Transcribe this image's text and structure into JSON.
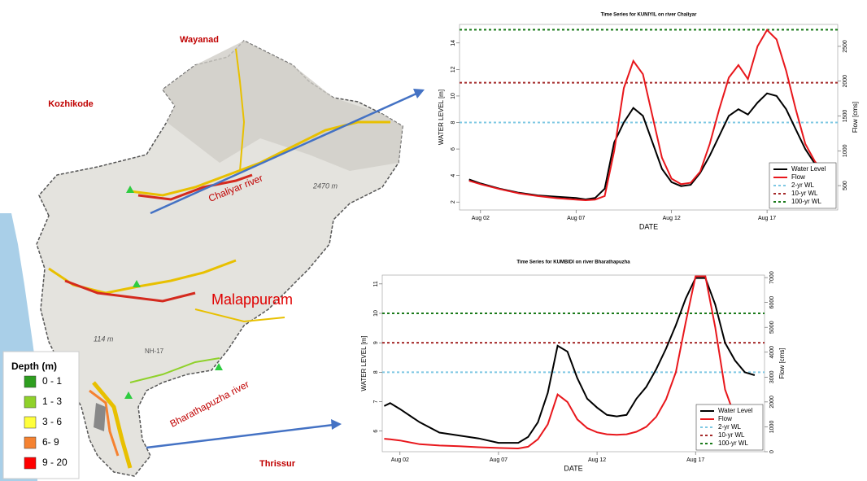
{
  "map": {
    "labels": {
      "wayanad": "Wayanad",
      "kozhikode": "Kozhikode",
      "malappuram": "Malappuram",
      "thrissur": "Thrissur",
      "chaliyar": "Chaliyar river",
      "bharathapuzha": "Bharathapuzha river",
      "peak": "2470 m",
      "elevation": "114 m",
      "highway": "NH-17"
    }
  },
  "legend": {
    "title": "Depth (m)",
    "items": [
      {
        "label": "0 - 1",
        "color": "#2e9e1f"
      },
      {
        "label": "1 - 3",
        "color": "#8fd12a"
      },
      {
        "label": "3 - 6",
        "color": "#ffff3c"
      },
      {
        "label": "6- 9",
        "color": "#f58231"
      },
      {
        "label": "9 - 20",
        "color": "#ff0000"
      }
    ]
  },
  "chart_data": [
    {
      "type": "line",
      "title": "Time Series for KUNIYIL on river Chaliyar",
      "x_label": "DATE",
      "y_label": "WATER LEVEL [m]",
      "y2_label": "Flow [cms]",
      "xlim": [
        0.9,
        20.7
      ],
      "xticks": [
        {
          "value": 2,
          "label": "Aug 02"
        },
        {
          "value": 7,
          "label": "Aug 07"
        },
        {
          "value": 12,
          "label": "Aug 12"
        },
        {
          "value": 17,
          "label": "Aug 17"
        }
      ],
      "ylim": [
        1.4,
        15.4
      ],
      "yticks": [
        2,
        4,
        6,
        8,
        10,
        12,
        14
      ],
      "y2lim": [
        150,
        2815
      ],
      "y2ticks": [
        500,
        1000,
        1500,
        2000,
        2500
      ],
      "legend": "lower right",
      "x": [
        1.4,
        2,
        3,
        4,
        5,
        6,
        7,
        7.5,
        8,
        8.5,
        9,
        9.5,
        10,
        10.5,
        11,
        11.5,
        12,
        12.5,
        13,
        13.5,
        14,
        14.5,
        15,
        15.5,
        16,
        16.5,
        17,
        17.5,
        18,
        18.5,
        19,
        19.5,
        20
      ],
      "series": [
        {
          "name": "Water Level",
          "color": "#000000",
          "axis": "y",
          "values": [
            3.7,
            3.4,
            3.0,
            2.7,
            2.5,
            2.4,
            2.3,
            2.2,
            2.3,
            3,
            6.5,
            8,
            9.1,
            8.5,
            6.5,
            4.5,
            3.5,
            3.2,
            3.3,
            4.2,
            5.5,
            7,
            8.5,
            9,
            8.6,
            9.5,
            10.2,
            10,
            9,
            7.5,
            6,
            4.9,
            4.3
          ]
        },
        {
          "name": "Flow",
          "color": "#e8171c",
          "axis": "y2",
          "values": [
            570,
            520,
            450,
            390,
            350,
            320,
            300,
            290,
            300,
            350,
            1000,
            1900,
            2290,
            2100,
            1500,
            900,
            600,
            520,
            540,
            700,
            1100,
            1600,
            2050,
            2230,
            2030,
            2500,
            2734,
            2600,
            2150,
            1600,
            1100,
            850,
            680
          ]
        }
      ],
      "reference_lines": [
        {
          "name": "2-yr WL",
          "color": "#7ec8e3",
          "value": 8
        },
        {
          "name": "10-yr WL",
          "color": "#a52a2a",
          "value": 11
        },
        {
          "name": "100-yr WL",
          "color": "#1a7a1a",
          "value": 15
        }
      ]
    },
    {
      "type": "line",
      "title": "Time Series for KUMBIDI on river Bharathapuzha",
      "x_label": "DATE",
      "y_label": "WATER LEVEL [m]",
      "y2_label": "Flow [cms]",
      "xlim": [
        1.1,
        20.5
      ],
      "xticks": [
        {
          "value": 2,
          "label": "Aug 02"
        },
        {
          "value": 7,
          "label": "Aug 07"
        },
        {
          "value": 12,
          "label": "Aug 12"
        },
        {
          "value": 17,
          "label": "Aug 17"
        }
      ],
      "ylim": [
        5.3,
        11.3
      ],
      "yticks": [
        6,
        7,
        8,
        9,
        10,
        11
      ],
      "y2lim": [
        0,
        7100
      ],
      "y2ticks": [
        0,
        1000,
        2000,
        3000,
        4000,
        5000,
        6000,
        7000
      ],
      "legend": "lower right",
      "x": [
        1.2,
        1.5,
        2,
        3,
        4,
        5,
        6,
        7,
        8,
        8.5,
        9,
        9.5,
        10,
        10.5,
        11,
        11.5,
        12,
        12.5,
        13,
        13.5,
        14,
        14.5,
        15,
        15.5,
        16,
        16.5,
        17,
        17.5,
        18,
        18.5,
        19,
        19.5,
        20
      ],
      "series": [
        {
          "name": "Water Level",
          "color": "#000000",
          "axis": "y",
          "values": [
            6.85,
            6.95,
            6.75,
            6.3,
            5.95,
            5.85,
            5.75,
            5.6,
            5.6,
            5.8,
            6.3,
            7.3,
            8.9,
            8.7,
            7.8,
            7.1,
            6.8,
            6.55,
            6.5,
            6.55,
            7.1,
            7.5,
            8.1,
            8.8,
            9.6,
            10.5,
            11.2,
            11.2,
            10.3,
            9,
            8.4,
            8.0,
            7.9
          ]
        },
        {
          "name": "Flow",
          "color": "#e8171c",
          "axis": "y2",
          "values": [
            520,
            500,
            450,
            300,
            250,
            220,
            180,
            150,
            130,
            200,
            500,
            1100,
            2300,
            2000,
            1300,
            950,
            780,
            700,
            680,
            700,
            800,
            1000,
            1400,
            2100,
            3200,
            5200,
            7050,
            7050,
            5000,
            2500,
            1400,
            1100,
            900
          ]
        }
      ],
      "reference_lines": [
        {
          "name": "2-yr WL",
          "color": "#7ec8e3",
          "value": 8
        },
        {
          "name": "10-yr WL",
          "color": "#a52a2a",
          "value": 9
        },
        {
          "name": "100-yr WL",
          "color": "#1a7a1a",
          "value": 10
        }
      ]
    }
  ]
}
